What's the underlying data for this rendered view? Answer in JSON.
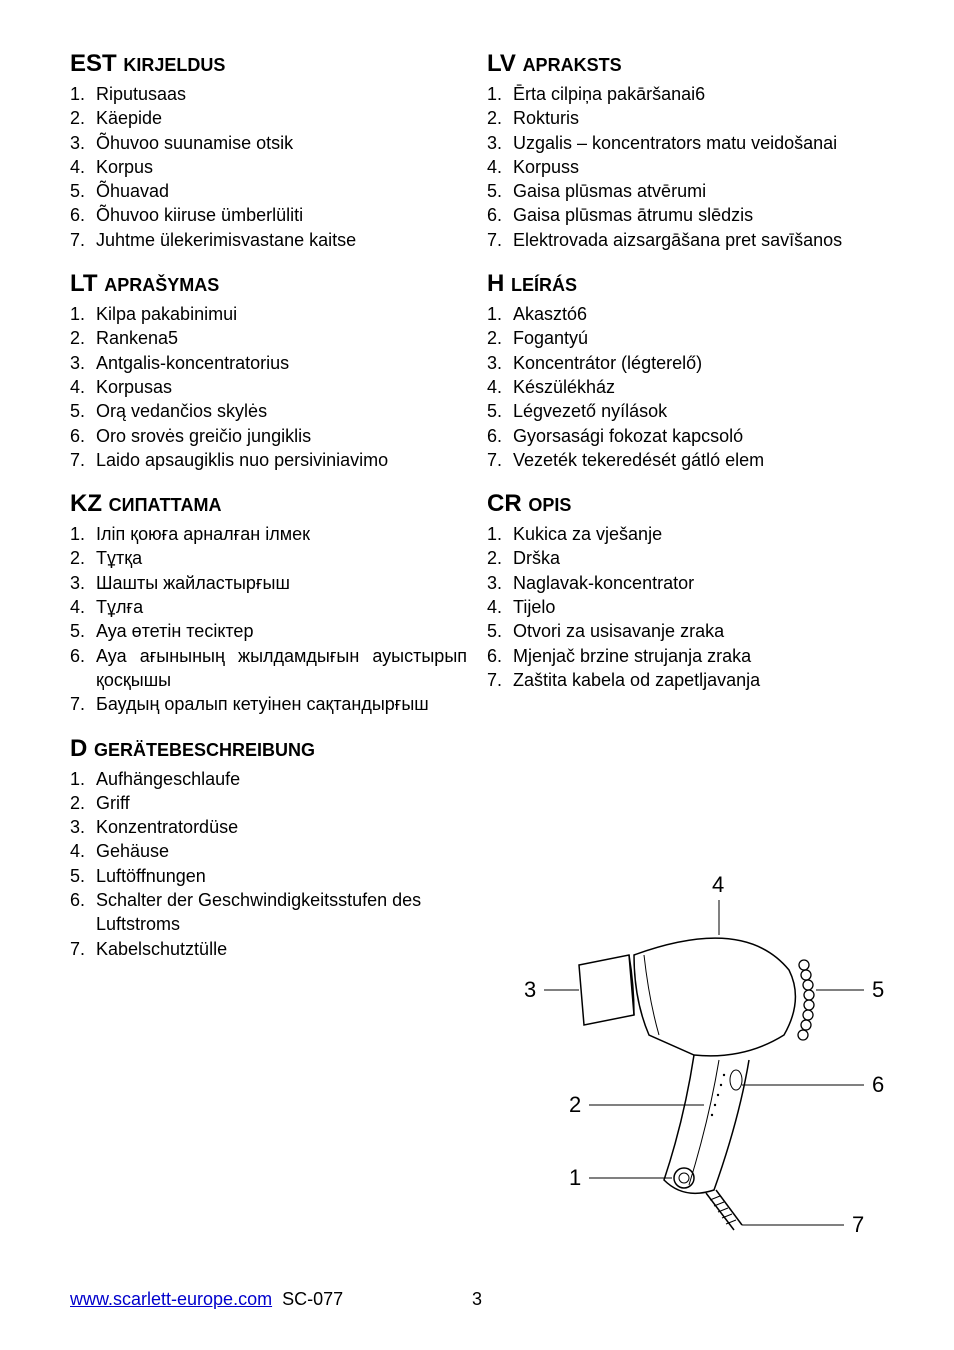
{
  "sections_left": [
    {
      "code": "EST",
      "word": "KIRJELDUS",
      "items": [
        "Riputusaas",
        "Käepide",
        "Õhuvoo suunamise otsik",
        "Korpus",
        "Õhuavad",
        "Õhuvoo kiiruse ümberlüliti",
        "Juhtme ülekerimisvastane kaitse"
      ]
    },
    {
      "code": "LT",
      "word": "APRAŠYMAS",
      "items": [
        "Kilpa pakabinimui",
        "Rankena5",
        "Antgalis-koncentratorius",
        "Korpusas",
        "Orą vedančios skylės",
        "Oro srovės greičio jungiklis",
        "Laido apsaugiklis nuo persiviniavimo"
      ]
    },
    {
      "code": "KZ",
      "word": "СИПАТТАМА",
      "items": [
        "Іліп қоюға арналған ілмек",
        "Тұтқа",
        "Шашты жайластырғыш",
        "Тұлға",
        "Ауа өтетін тесіктер",
        "Ауа ағынының жылдамдығын ауыстырып қосқышы",
        "Баудың оралып кетуінен сақтандырғыш"
      ],
      "justify_indices": [
        5
      ]
    },
    {
      "code": "D",
      "word": "GERÄTEBESCHREIBUNG",
      "items": [
        "Aufhängeschlaufe",
        "Griff",
        "Konzentratordüse",
        "Gehäuse",
        "Luftöffnungen",
        "Schalter der Geschwindigkeitsstufen des Luftstroms",
        "Kabelschutztülle"
      ]
    }
  ],
  "sections_right": [
    {
      "code": "LV",
      "word": "APRAKSTS",
      "items": [
        "Ērta cilpiņa pakāršanai6",
        "Rokturis",
        "Uzgalis – koncentrators matu veidošanai",
        "Korpuss",
        "Gaisa plūsmas atvērumi",
        "Gaisa plūsmas ātrumu slēdzis",
        "Elektrovada aizsargāšana pret savīšanos"
      ]
    },
    {
      "code": "H",
      "word": "LEÍRÁS",
      "items": [
        "Akasztó6",
        "Fogantyú",
        "Koncentrátor (légterelő)",
        "Készülékház",
        "Légvezető nyílások",
        "Gyorsasági fokozat kapcsoló",
        "Vezeték tekeredését gátló elem"
      ]
    },
    {
      "code": "CR",
      "word": "OPIS",
      "items": [
        "Kukica za vješanje",
        "Drška",
        "Naglavak-koncentrator",
        "Tijelo",
        "Otvori za usisavanje zraka",
        "Mjenjač brzine strujanja zraka",
        "Zaštita kabela od zapetljavanja"
      ]
    }
  ],
  "diagram": {
    "labels": [
      "1",
      "2",
      "3",
      "4",
      "5",
      "6",
      "7"
    ],
    "stroke": "#000000",
    "fill": "none",
    "stroke_width": 1.5
  },
  "footer": {
    "link": "www.scarlett-europe.com",
    "model": "SC-077",
    "page": "3"
  }
}
